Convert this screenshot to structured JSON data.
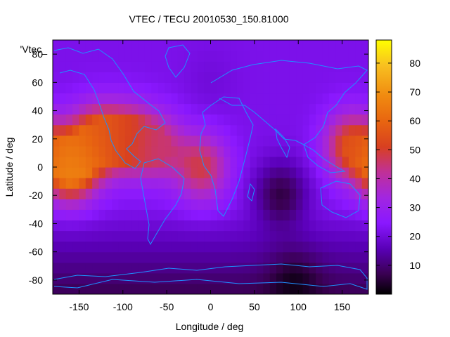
{
  "chart_data": {
    "type": "heatmap",
    "title": "VTEC / TECU 20010530_150.81000",
    "xlabel": "Longitude / deg",
    "ylabel": "Latitude / deg",
    "key_label": "'Vtec_",
    "xlim": [
      -180,
      180
    ],
    "ylim": [
      -90,
      90
    ],
    "zlim": [
      0,
      88
    ],
    "x_ticks": [
      -150,
      -100,
      -50,
      0,
      50,
      100,
      150
    ],
    "y_ticks": [
      -80,
      -60,
      -40,
      -20,
      0,
      20,
      40,
      60,
      80
    ],
    "x_tick_labels": [
      "-150",
      "-100",
      "-50",
      "0",
      "50",
      "100",
      "150"
    ],
    "y_tick_labels": [
      "-80",
      "-60",
      "-40",
      "-20",
      "0",
      "20",
      "40",
      "60",
      "80"
    ],
    "colorbar_ticks": [
      10,
      20,
      30,
      40,
      50,
      60,
      70,
      80
    ],
    "colorbar_tick_labels": [
      "10",
      "20",
      "30",
      "40",
      "50",
      "60",
      "70",
      "80"
    ],
    "colormap": [
      "#000000",
      "#3a0052",
      "#5a00b8",
      "#8a18ff",
      "#a226e0",
      "#c03098",
      "#d84020",
      "#e86510",
      "#f08a10",
      "#f8c020",
      "#ffff00"
    ],
    "overlay": "coastlines",
    "coastline_color": "#1e90ff",
    "grid": false,
    "annotations": [
      {
        "text": "'Vtec_",
        "location": "upper-left corner of plot"
      }
    ],
    "regions": [
      {
        "lon": -160,
        "lat": 0,
        "value": 68
      },
      {
        "lon": -130,
        "lat": 20,
        "value": 58
      },
      {
        "lon": -95,
        "lat": 20,
        "value": 52
      },
      {
        "lon": -60,
        "lat": 15,
        "value": 44
      },
      {
        "lon": -10,
        "lat": 0,
        "value": 48
      },
      {
        "lon": 160,
        "lat": 15,
        "value": 54
      },
      {
        "lon": 80,
        "lat": -20,
        "value": 6
      },
      {
        "lon": 95,
        "lat": -85,
        "value": 2
      },
      {
        "lon": 0,
        "lat": 60,
        "value": 20
      }
    ]
  }
}
